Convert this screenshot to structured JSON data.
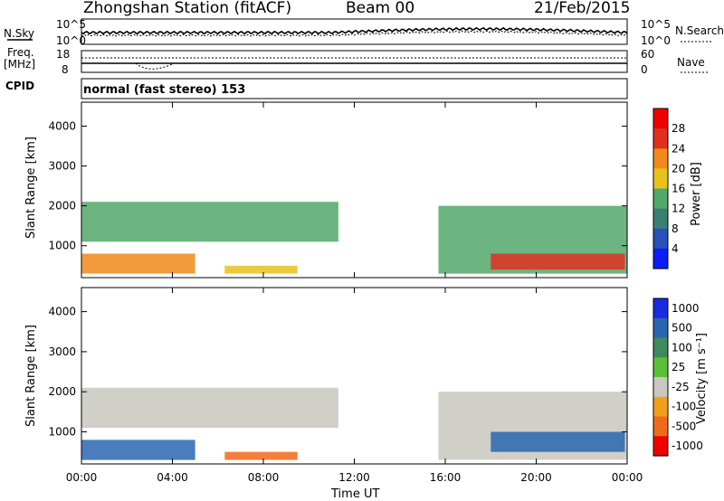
{
  "header": {
    "station": "Zhongshan Station (fitACF)",
    "beam": "Beam 00",
    "date": "21/Feb/2015"
  },
  "top_panels": {
    "noise_left_label": "N.Sky",
    "noise_right_label": "N.Search",
    "noise_top_tick": "10^5",
    "noise_bottom_tick": "10^0",
    "freq_label_line1": "Freq.",
    "freq_label_line2": "[MHz]",
    "freq_ticks": [
      "18",
      "8"
    ],
    "nave_label": "Nave",
    "nave_ticks": [
      "60",
      "0"
    ],
    "cpid_label": "CPID",
    "cpid_text": "normal (fast stereo) 153"
  },
  "chart_data": [
    {
      "type": "heatmap",
      "name": "power-panel",
      "ylabel": "Slant Range [km]",
      "ylim": [
        200,
        4600
      ],
      "yticks": [
        1000,
        2000,
        3000,
        4000
      ],
      "xlim": [
        0,
        24
      ],
      "colorbar_label": "Power [dB]",
      "colorbar_ticks": [
        "4",
        "8",
        "12",
        "16",
        "20",
        "24",
        "28"
      ],
      "colorbar_colors": [
        "#0a1df5",
        "#2850b8",
        "#3a7f72",
        "#52a86a",
        "#e6c21a",
        "#f08a1a",
        "#e03020",
        "#f00000"
      ],
      "echo_regions": [
        {
          "t0": 0.0,
          "t1": 11.3,
          "r0": 1100,
          "r1": 2100,
          "level": 12
        },
        {
          "t0": 0.0,
          "t1": 5.0,
          "r0": 300,
          "r1": 800,
          "level": 20
        },
        {
          "t0": 6.3,
          "t1": 9.5,
          "r0": 300,
          "r1": 500,
          "level": 18
        },
        {
          "t0": 15.7,
          "t1": 24.0,
          "r0": 300,
          "r1": 2000,
          "level": 12
        },
        {
          "t0": 18.0,
          "t1": 23.9,
          "r0": 400,
          "r1": 800,
          "level": 24
        }
      ]
    },
    {
      "type": "heatmap",
      "name": "velocity-panel",
      "ylabel": "Slant Range [km]",
      "ylim": [
        200,
        4600
      ],
      "yticks": [
        1000,
        2000,
        3000,
        4000
      ],
      "xlim": [
        0,
        24
      ],
      "colorbar_label": "Velocity [m s⁻¹]",
      "colorbar_ticks": [
        "1000",
        "500",
        "100",
        "25",
        "-25",
        "-100",
        "-500",
        "-1000"
      ],
      "colorbar_colors": [
        "#1a2ae0",
        "#2a66b0",
        "#3e8a5e",
        "#5cbf3a",
        "#c8c8c0",
        "#f2a01a",
        "#f06a1a",
        "#f00000"
      ],
      "echo_regions": [
        {
          "t0": 0.0,
          "t1": 11.3,
          "r0": 1100,
          "r1": 2100,
          "level": -10
        },
        {
          "t0": 0.0,
          "t1": 5.0,
          "r0": 300,
          "r1": 800,
          "level": 200
        },
        {
          "t0": 6.3,
          "t1": 9.5,
          "r0": 300,
          "r1": 500,
          "level": -200
        },
        {
          "t0": 15.7,
          "t1": 24.0,
          "r0": 300,
          "r1": 2000,
          "level": 0
        },
        {
          "t0": 18.0,
          "t1": 23.9,
          "r0": 500,
          "r1": 1000,
          "level": 300
        }
      ]
    }
  ],
  "x_axis": {
    "ticks": [
      "00:00",
      "04:00",
      "08:00",
      "12:00",
      "16:00",
      "20:00",
      "00:00"
    ],
    "label": "Time UT"
  }
}
